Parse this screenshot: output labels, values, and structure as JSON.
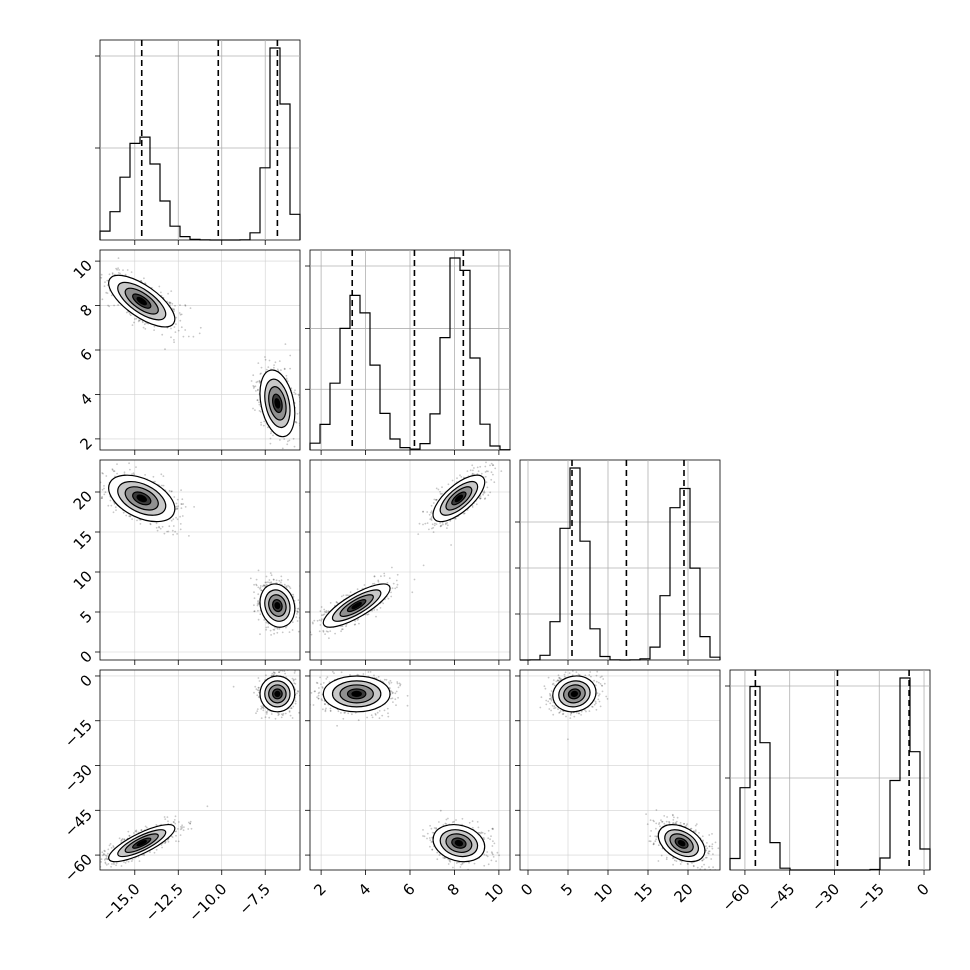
{
  "chart_data": {
    "type": "corner",
    "dims": [
      {
        "range": [
          -17.0,
          -5.5
        ],
        "quantiles": [
          -14.6,
          -10.2,
          -6.8
        ],
        "ticks": [
          -15.0,
          -12.5,
          -10.0,
          -7.5
        ],
        "tick_labels": [
          "−15.0",
          "−12.5",
          "−10.0",
          "−7.5"
        ],
        "hist_ticks": [
          0.5,
          1.0
        ]
      },
      {
        "range": [
          1.5,
          10.5
        ],
        "quantiles": [
          3.4,
          6.2,
          8.4
        ],
        "ticks": [
          2,
          4,
          6,
          8,
          10
        ],
        "tick_labels": [
          "2",
          "4",
          "6",
          "8",
          "10"
        ],
        "hist_ticks": [
          0.33,
          0.66,
          1.0
        ]
      },
      {
        "range": [
          -1.0,
          24.0
        ],
        "quantiles": [
          5.5,
          12.3,
          19.5
        ],
        "ticks": [
          0,
          5,
          10,
          15,
          20
        ],
        "tick_labels": [
          "0",
          "5",
          "10",
          "15",
          "20"
        ],
        "hist_ticks": [
          0.25,
          0.5,
          0.75
        ]
      },
      {
        "range": [
          -65.0,
          2.0
        ],
        "quantiles": [
          -56.5,
          -29.0,
          -5.0
        ],
        "ticks": [
          -60,
          -45,
          -30,
          -15,
          0
        ],
        "tick_labels": [
          "−60",
          "−45",
          "−30",
          "−15",
          "0"
        ],
        "hist_ticks": [
          0.5,
          1.0
        ]
      }
    ],
    "modes": [
      {
        "mean": [
          -14.6,
          8.2,
          19.2,
          -56.0
        ],
        "sd": [
          0.95,
          0.58,
          1.45,
          3.1
        ]
      },
      {
        "mean": [
          -6.8,
          3.6,
          5.8,
          -6.0
        ],
        "sd": [
          0.5,
          0.75,
          1.35,
          3.0
        ]
      }
    ],
    "correlations": {
      "1,0": [
        -0.7,
        -0.3
      ],
      "2,0": [
        -0.45,
        -0.15
      ],
      "2,1": [
        0.7,
        0.8
      ],
      "3,0": [
        0.8,
        0.0
      ],
      "3,1": [
        -0.2,
        0.0
      ],
      "3,2": [
        -0.4,
        0.1
      ]
    },
    "grid": true,
    "xlabel": "",
    "ylabel": "",
    "title": ""
  }
}
